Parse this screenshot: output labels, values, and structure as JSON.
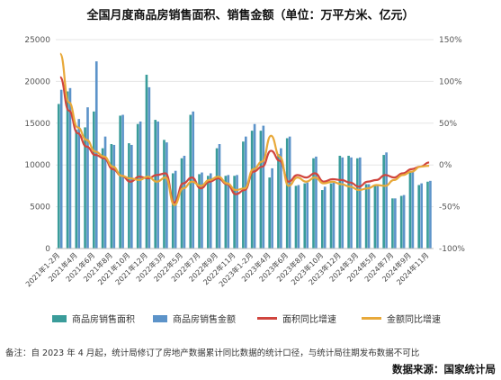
{
  "title": "全国月度商品房销售面积、销售金额（单位：万平方米、亿元）",
  "footnote": "备注：自 2023 年 4 月起，统计局修订了房地产数据累计同比数据的统计口径，与统计局往期发布数据不可比",
  "source": "数据来源：国家统计局",
  "colors": {
    "area_bar": "#3a9c9a",
    "amount_bar": "#5c93c9",
    "area_yoy": "#d0453e",
    "amount_yoy": "#e8a93a",
    "grid": "#e6e6e6"
  },
  "chart_data": {
    "type": "bar",
    "left_axis": {
      "ylim": [
        0,
        25000
      ],
      "ticks": [
        "0",
        "5000",
        "10000",
        "15000",
        "20000",
        "25000"
      ]
    },
    "right_axis": {
      "ylim": [
        -100,
        150
      ],
      "ticks": [
        "-100%",
        "-50%",
        "0%",
        "50%",
        "100%",
        "150%"
      ]
    },
    "x_tick_labels": [
      "2021年1-2月",
      "2021年4月",
      "2021年6月",
      "2021年8月",
      "2021年10月",
      "2021年12月",
      "2022年3月",
      "2022年5月",
      "2022年7月",
      "2022年9月",
      "2022年11月",
      "2023年1-2月",
      "2023年4月",
      "2023年6月",
      "2023年8月",
      "2023年10月",
      "2023年12月",
      "2024年3月",
      "2024年5月",
      "2024年7月",
      "2024年9月",
      "2024年11月"
    ],
    "categories": [
      "2021-01/02",
      "2021-03",
      "2021-04",
      "2021-05",
      "2021-06",
      "2021-07",
      "2021-08",
      "2021-09",
      "2021-10",
      "2021-11",
      "2021-12",
      "2022-01/02",
      "2022-03",
      "2022-04",
      "2022-05",
      "2022-06",
      "2022-07",
      "2022-08",
      "2022-09",
      "2022-10",
      "2022-11",
      "2022-12",
      "2023-01/02",
      "2023-03",
      "2023-04",
      "2023-05",
      "2023-06",
      "2023-07",
      "2023-08",
      "2023-09",
      "2023-10",
      "2023-11",
      "2023-12",
      "2024-01/02",
      "2024-03",
      "2024-04",
      "2024-05",
      "2024-06",
      "2024-07",
      "2024-08",
      "2024-09",
      "2024-10",
      "2024-11"
    ],
    "series": [
      {
        "name": "商品房销售面积",
        "kind": "bar",
        "axis": "left",
        "values": [
          17300,
          18800,
          14200,
          14500,
          16400,
          12000,
          12500,
          15900,
          12600,
          14900,
          20800,
          15400,
          13000,
          9000,
          10800,
          16000,
          8900,
          8700,
          12000,
          8700,
          8700,
          12800,
          14100,
          14100,
          8500,
          11300,
          13200,
          7500,
          7800,
          10800,
          7000,
          7800,
          11100,
          11100,
          10800,
          7700,
          7500,
          11200,
          6000,
          6300,
          9200,
          7600,
          8000
        ]
      },
      {
        "name": "商品房销售金额",
        "kind": "bar",
        "axis": "left",
        "values": [
          19000,
          19200,
          15500,
          16900,
          22400,
          13400,
          12400,
          16000,
          12400,
          15200,
          19300,
          15200,
          12700,
          9300,
          11100,
          16400,
          9100,
          9000,
          12500,
          8800,
          8800,
          13400,
          14900,
          14700,
          9600,
          12000,
          13400,
          7600,
          7900,
          11000,
          7400,
          8000,
          10900,
          10900,
          10900,
          7700,
          7500,
          11500,
          6000,
          6400,
          9300,
          7800,
          8100
        ]
      },
      {
        "name": "面积同比增速",
        "kind": "line",
        "axis": "right",
        "values": [
          105,
          65,
          38,
          22,
          12,
          8,
          -5,
          -13,
          -20,
          -14,
          -16,
          -12,
          -10,
          -45,
          -22,
          -15,
          -28,
          -20,
          -16,
          -23,
          -35,
          -30,
          -8,
          -2,
          17,
          5,
          -20,
          -12,
          -15,
          -10,
          -20,
          -17,
          -18,
          -21,
          -26,
          -20,
          -18,
          -12,
          -15,
          -10,
          -5,
          -2,
          3
        ]
      },
      {
        "name": "金额同比增速",
        "kind": "line",
        "axis": "right",
        "values": [
          133,
          75,
          45,
          30,
          16,
          10,
          -2,
          -13,
          -16,
          -18,
          -14,
          -20,
          -15,
          -48,
          -28,
          -20,
          -25,
          -18,
          -14,
          -22,
          -30,
          -28,
          -5,
          4,
          35,
          10,
          -25,
          -15,
          -20,
          -15,
          -22,
          -20,
          -23,
          -26,
          -30,
          -28,
          -24,
          -25,
          -18,
          -12,
          -8,
          -2,
          -1
        ]
      }
    ]
  }
}
